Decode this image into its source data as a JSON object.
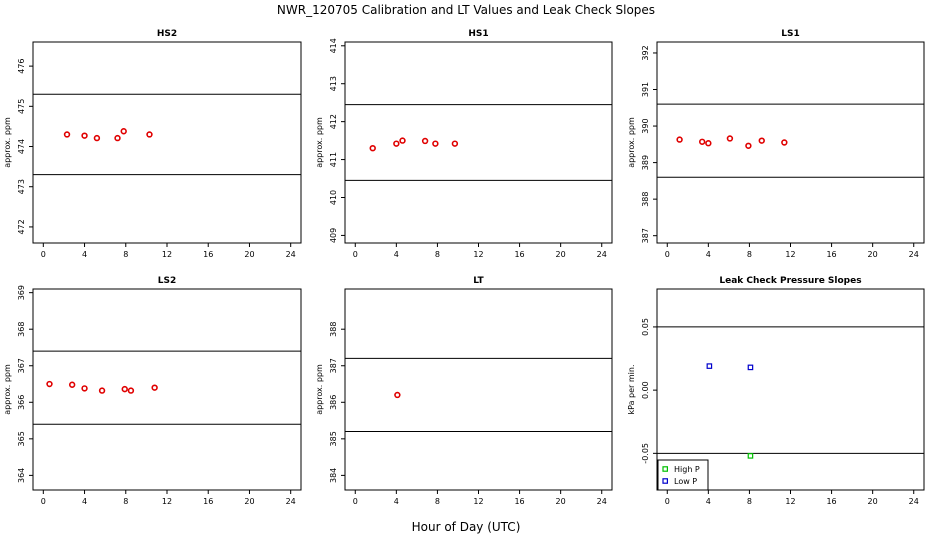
{
  "title": "NWR_120705  Calibration and LT Values and Leak Check Slopes",
  "xlabel": "Hour of Day (UTC)",
  "colors": {
    "red": "#e00000",
    "green": "#00c000",
    "blue": "#0000cc"
  },
  "chart_data": [
    {
      "type": "scatter",
      "title": "HS2",
      "ylabel": "approx. ppm",
      "xlim": [
        -1,
        25
      ],
      "ylim": [
        471.6,
        476.6
      ],
      "xticks": [
        0,
        4,
        8,
        12,
        16,
        20,
        24
      ],
      "xtick_labels": [
        "0",
        "4",
        "8",
        "12",
        "16",
        "20",
        "24"
      ],
      "yticks": [
        472,
        473,
        474,
        475,
        476
      ],
      "ytick_labels": [
        "472",
        "473",
        "474",
        "475",
        "476"
      ],
      "hlines": [
        475.3,
        473.3
      ],
      "series": [
        {
          "color": "#e00000",
          "marker": "circle",
          "x": [
            2.3,
            4.0,
            5.2,
            7.2,
            7.8,
            10.3
          ],
          "y": [
            474.3,
            474.27,
            474.21,
            474.21,
            474.38,
            474.3
          ]
        }
      ]
    },
    {
      "type": "scatter",
      "title": "HS1",
      "ylabel": "approx. ppm",
      "xlim": [
        -1,
        25
      ],
      "ylim": [
        408.8,
        414.1
      ],
      "xticks": [
        0,
        4,
        8,
        12,
        16,
        20,
        24
      ],
      "xtick_labels": [
        "0",
        "4",
        "8",
        "12",
        "16",
        "20",
        "24"
      ],
      "yticks": [
        409,
        410,
        411,
        412,
        413,
        414
      ],
      "ytick_labels": [
        "409",
        "410",
        "411",
        "412",
        "413",
        "414"
      ],
      "hlines": [
        412.45,
        410.45
      ],
      "series": [
        {
          "color": "#e00000",
          "marker": "circle",
          "x": [
            1.7,
            4.0,
            4.6,
            6.8,
            7.8,
            9.7
          ],
          "y": [
            411.3,
            411.42,
            411.5,
            411.49,
            411.42,
            411.42
          ]
        }
      ]
    },
    {
      "type": "scatter",
      "title": "LS1",
      "ylabel": "approx. ppm",
      "xlim": [
        -1,
        25
      ],
      "ylim": [
        386.8,
        392.3
      ],
      "xticks": [
        0,
        4,
        8,
        12,
        16,
        20,
        24
      ],
      "xtick_labels": [
        "0",
        "4",
        "8",
        "12",
        "16",
        "20",
        "24"
      ],
      "yticks": [
        387,
        388,
        389,
        390,
        391,
        392
      ],
      "ytick_labels": [
        "387",
        "388",
        "389",
        "390",
        "391",
        "392"
      ],
      "hlines": [
        390.6,
        388.6
      ],
      "series": [
        {
          "color": "#e00000",
          "marker": "circle",
          "x": [
            1.2,
            3.4,
            4.0,
            6.1,
            7.9,
            9.2,
            11.4
          ],
          "y": [
            389.63,
            389.57,
            389.53,
            389.66,
            389.46,
            389.6,
            389.55
          ]
        }
      ]
    },
    {
      "type": "scatter",
      "title": "LS2",
      "ylabel": "approx. ppm",
      "xlim": [
        -1,
        25
      ],
      "ylim": [
        363.6,
        369.1
      ],
      "xticks": [
        0,
        4,
        8,
        12,
        16,
        20,
        24
      ],
      "xtick_labels": [
        "0",
        "4",
        "8",
        "12",
        "16",
        "20",
        "24"
      ],
      "yticks": [
        364,
        365,
        366,
        367,
        368,
        369
      ],
      "ytick_labels": [
        "364",
        "365",
        "366",
        "367",
        "368",
        "369"
      ],
      "hlines": [
        367.4,
        365.4
      ],
      "series": [
        {
          "color": "#e00000",
          "marker": "circle",
          "x": [
            0.6,
            2.8,
            4.0,
            5.7,
            7.9,
            8.5,
            10.8
          ],
          "y": [
            366.5,
            366.48,
            366.38,
            366.32,
            366.36,
            366.32,
            366.4
          ]
        }
      ]
    },
    {
      "type": "scatter",
      "title": "LT",
      "ylabel": "approx. ppm",
      "xlim": [
        -1,
        25
      ],
      "ylim": [
        383.6,
        389.1
      ],
      "xticks": [
        0,
        4,
        8,
        12,
        16,
        20,
        24
      ],
      "xtick_labels": [
        "0",
        "4",
        "8",
        "12",
        "16",
        "20",
        "24"
      ],
      "yticks": [
        384,
        385,
        386,
        387,
        388
      ],
      "ytick_labels": [
        "384",
        "385",
        "386",
        "387",
        "388"
      ],
      "hlines": [
        387.2,
        385.2
      ],
      "series": [
        {
          "color": "#e00000",
          "marker": "circle",
          "x": [
            4.1
          ],
          "y": [
            386.2
          ]
        }
      ]
    },
    {
      "type": "scatter",
      "title": "Leak Check Pressure Slopes",
      "ylabel": "kPa per min.",
      "xlim": [
        -1,
        25
      ],
      "ylim": [
        -0.079,
        0.08
      ],
      "xticks": [
        0,
        4,
        8,
        12,
        16,
        20,
        24
      ],
      "xtick_labels": [
        "0",
        "4",
        "8",
        "12",
        "16",
        "20",
        "24"
      ],
      "yticks": [
        -0.05,
        0.0,
        0.05
      ],
      "ytick_labels": [
        "-0.05",
        "0.00",
        "0.05"
      ],
      "hlines": [
        0.05,
        -0.05
      ],
      "legend": "bottom-left",
      "series": [
        {
          "name": "High P",
          "color": "#00c000",
          "marker": "square",
          "x": [
            8.1
          ],
          "y": [
            -0.052
          ]
        },
        {
          "name": "Low P",
          "color": "#0000cc",
          "marker": "square",
          "x": [
            4.1,
            8.1
          ],
          "y": [
            0.019,
            0.018
          ]
        }
      ]
    }
  ]
}
